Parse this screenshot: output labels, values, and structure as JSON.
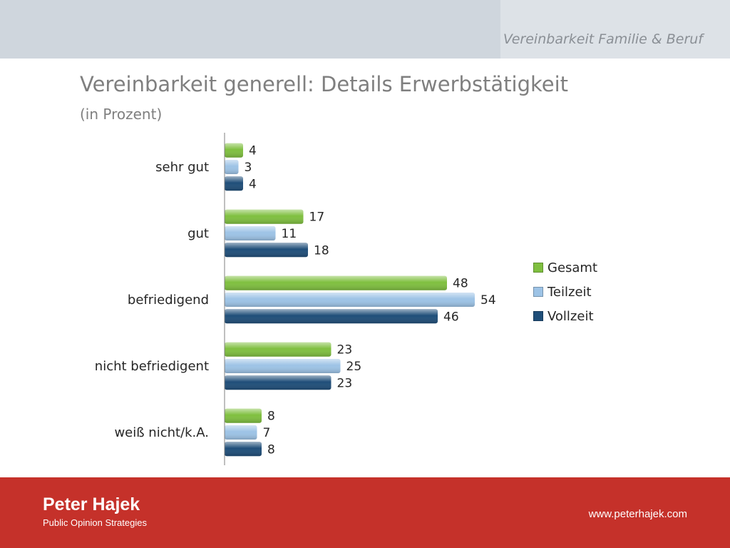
{
  "header": {
    "section_label": "Vereinbarkeit Familie & Beruf"
  },
  "chart_data": {
    "type": "bar",
    "orientation": "horizontal",
    "title": "Vereinbarkeit generell: Details Erwerbstätigkeit",
    "subtitle": "(in Prozent)",
    "categories": [
      "sehr gut",
      "gut",
      "befriedigend",
      "nicht befriedigent",
      "weiß nicht/k.A."
    ],
    "series": [
      {
        "name": "Gesamt",
        "values": [
          4,
          17,
          48,
          23,
          8
        ],
        "color": "#7fbf3f"
      },
      {
        "name": "Teilzeit",
        "values": [
          3,
          11,
          54,
          25,
          7
        ],
        "color": "#9dc3e6"
      },
      {
        "name": "Vollzeit",
        "values": [
          4,
          18,
          46,
          23,
          8
        ],
        "color": "#1f4e79"
      }
    ],
    "xlim": [
      0,
      54
    ],
    "grid": false,
    "legend_position": "right"
  },
  "footer": {
    "brand_name": "Peter Hajek",
    "brand_tagline": "Public Opinion Strategies",
    "website": "www.peterhajek.com"
  }
}
